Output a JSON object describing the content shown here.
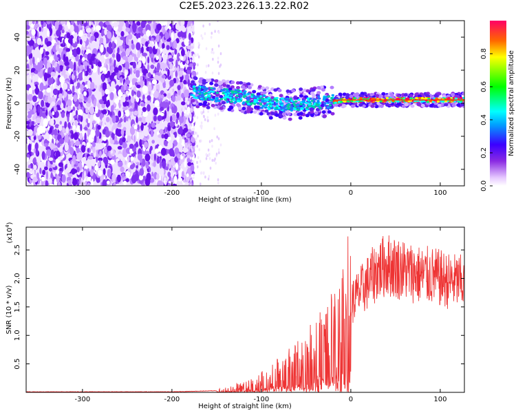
{
  "title": "C2E5.2023.226.13.22.R02",
  "chart_data": [
    {
      "type": "heatmap",
      "xlabel": "Height of straight line (km)",
      "ylabel": "Frequency (Hz)",
      "xlim": [
        -363,
        127
      ],
      "ylim": [
        -50,
        50
      ],
      "xticks": [
        -300,
        -200,
        -100,
        0,
        100
      ],
      "xtick_labels": [
        "-300",
        "-200",
        "-100",
        "0",
        "100"
      ],
      "yticks": [
        -40,
        -20,
        0,
        20,
        40
      ],
      "ytick_labels": [
        "-40",
        "-20",
        "0",
        "20",
        "40"
      ],
      "colorbar": {
        "label": "Normalized spectral amplitude",
        "range": [
          0,
          1
        ],
        "ticks": [
          0.0,
          0.2,
          0.4,
          0.6,
          0.8
        ],
        "tick_labels": [
          "0.0",
          "0.2",
          "0.4",
          "0.6",
          "0.8"
        ]
      },
      "signal_band": [
        {
          "x": -180,
          "y": 7
        },
        {
          "x": -150,
          "y": 5
        },
        {
          "x": -125,
          "y": 4
        },
        {
          "x": -100,
          "y": 1
        },
        {
          "x": -75,
          "y": -1
        },
        {
          "x": -50,
          "y": 0
        },
        {
          "x": -25,
          "y": 1
        },
        {
          "x": 0,
          "y": 2
        },
        {
          "x": 50,
          "y": 2
        },
        {
          "x": 100,
          "y": 2
        },
        {
          "x": 127,
          "y": 2
        }
      ],
      "noise_region_xlim": [
        -363,
        -175
      ]
    },
    {
      "type": "line",
      "xlabel": "Height of straight line (km)",
      "ylabel": "SNR (10 * v/v)",
      "yscale_label": "(x10",
      "yscale_exponent": "4",
      "yscale_suffix": ")",
      "xlim": [
        -363,
        127
      ],
      "ylim": [
        0,
        2.9
      ],
      "xticks": [
        -300,
        -200,
        -100,
        0,
        100
      ],
      "xtick_labels": [
        "-300",
        "-200",
        "-100",
        "0",
        "100"
      ],
      "yticks": [
        0.5,
        1.0,
        1.5,
        2.0,
        2.5
      ],
      "ytick_labels": [
        "0.5",
        "1.0",
        "1.5",
        "2.0",
        "2.5"
      ],
      "series": [
        {
          "name": "SNR",
          "color": "#ee3333",
          "x": [
            -363,
            -300,
            -250,
            -200,
            -175,
            -150,
            -140,
            -130,
            -120,
            -110,
            -100,
            -90,
            -80,
            -70,
            -60,
            -50,
            -40,
            -30,
            -20,
            -10,
            -5,
            0,
            5,
            10,
            20,
            30,
            40,
            50,
            60,
            70,
            80,
            90,
            100,
            110,
            120,
            127
          ],
          "y": [
            0.01,
            0.01,
            0.01,
            0.01,
            0.02,
            0.03,
            0.05,
            0.08,
            0.1,
            0.15,
            0.2,
            0.28,
            0.35,
            0.42,
            0.5,
            0.6,
            0.72,
            0.85,
            1.0,
            1.2,
            1.5,
            1.6,
            1.7,
            1.8,
            2.0,
            2.2,
            2.3,
            2.25,
            2.2,
            2.15,
            2.1,
            2.1,
            2.05,
            2.0,
            2.0,
            1.95
          ]
        }
      ]
    }
  ]
}
